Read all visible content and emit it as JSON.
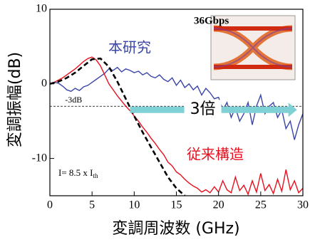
{
  "chart_data": {
    "type": "line",
    "xlabel": "変調周波数 (GHz)",
    "ylabel": "変調振幅(dB)",
    "xlim": [
      0,
      30
    ],
    "ylim": [
      -15,
      10
    ],
    "xticks": [
      0,
      5,
      10,
      15,
      20,
      25,
      30
    ],
    "yticks": [
      10,
      0,
      -10
    ],
    "x": [
      0,
      0.5,
      1,
      1.5,
      2,
      2.5,
      3,
      3.5,
      4,
      4.5,
      5,
      5.5,
      6,
      6.5,
      7,
      7.5,
      8,
      8.5,
      9,
      9.5,
      10,
      10.5,
      11,
      11.5,
      12,
      12.5,
      13,
      13.5,
      14,
      14.5,
      15,
      15.5,
      16,
      16.5,
      17,
      17.5,
      18,
      18.5,
      19,
      19.5,
      20,
      20.5,
      21,
      21.5,
      22,
      22.5,
      23,
      23.5,
      24,
      24.5,
      25,
      25.5,
      26,
      26.5,
      27,
      27.5,
      28,
      28.5,
      29,
      29.5,
      30
    ],
    "series": [
      {
        "name": "本研究",
        "color": "#3a45a8",
        "values": [
          0,
          0.2,
          0.1,
          -0.3,
          -0.8,
          -1,
          -0.6,
          -0.9,
          -0.4,
          -0.2,
          0.2,
          0.6,
          1,
          1.4,
          2,
          1.8,
          2.2,
          1.6,
          2,
          1.8,
          1.5,
          1.7,
          1.2,
          1.5,
          1,
          0.8,
          1.2,
          0.6,
          0.3,
          0.8,
          -0.2,
          0.5,
          -0.5,
          0,
          -0.8,
          -0.3,
          -1.5,
          -0.6,
          -1.2,
          -2,
          -1.8,
          -3.5,
          -2.5,
          -4.5,
          -3.2,
          -5,
          -4,
          -2.5,
          -5.5,
          -3,
          -1.5,
          -4,
          -3,
          -2.5,
          -4.5,
          -3.5,
          -6,
          -5,
          -7.5,
          -5.5,
          -4
        ]
      },
      {
        "name": "従来構造",
        "color": "#e8101e",
        "values": [
          0,
          0.2,
          0.5,
          0.8,
          1.2,
          1.6,
          2,
          2.5,
          3,
          3.4,
          3.6,
          3.2,
          2.4,
          1.2,
          0,
          -0.8,
          -1.6,
          -2.3,
          -3,
          -3.6,
          -4.3,
          -5,
          -5.8,
          -6.5,
          -7.3,
          -8,
          -8.8,
          -9.5,
          -10.5,
          -11,
          -11.8,
          -12.2,
          -12.8,
          -13.3,
          -13.7,
          -14,
          -14.5,
          -14.2,
          -14.6,
          -13.8,
          -14.5,
          -13,
          -14.2,
          -14.6,
          -12.5,
          -14.3,
          -13.6,
          -14.8,
          -13,
          -14.5,
          -12,
          -14.3,
          -13.5,
          -14.7,
          -12.8,
          -14.4,
          -11.5,
          -14.2,
          -13,
          -14.6,
          -14
        ]
      },
      {
        "color": "#000000",
        "dashed": true,
        "x": [
          0,
          1,
          2,
          3,
          4,
          5,
          6,
          7,
          8,
          9,
          10,
          11,
          12,
          13,
          14,
          15,
          16
        ],
        "values": [
          0,
          0.3,
          0.8,
          1.5,
          2.4,
          3.3,
          3.4,
          2.3,
          0.3,
          -2,
          -4.3,
          -6.5,
          -8.5,
          -10.5,
          -12.5,
          -14,
          -15
        ]
      }
    ],
    "reference_line": {
      "value": -3,
      "label": "-3dB"
    },
    "arrow": {
      "x": [
        9.5,
        29.3
      ],
      "label": "3倍",
      "color": "#7fd1d6"
    },
    "annotation": {
      "text": "I= 8.5 x I",
      "subscript": "th"
    },
    "inset_title": "36Gbps"
  }
}
